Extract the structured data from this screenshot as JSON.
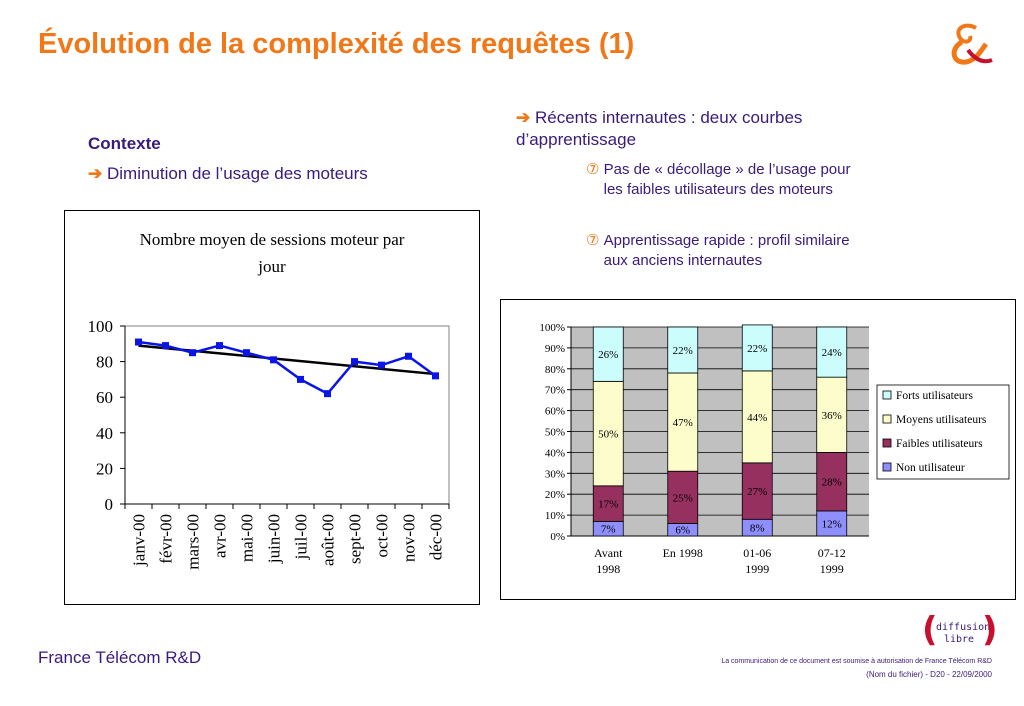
{
  "page": {
    "title": "Évolution de la complexité des requêtes (1)",
    "context_heading": "Contexte",
    "context_bullet": "Diminution de l’usage des moteurs",
    "recent_bullet": "Récents internautes  : deux courbes d’apprentissage",
    "sub_symbol": "⑦",
    "arrow": "➔",
    "sub_bullets": [
      "Pas de « décollage » de l’usage pour les faibles utilisateurs des moteurs",
      "Apprentissage rapide  : profil similaire aux anciens internautes"
    ],
    "footer_left": "France Télécom R&D",
    "footer_right_line1": "La communication de ce document est soumise à autorisation de France Télécom R&D",
    "footer_right_line2": "(Nom du fichier)  - D20 - 22/09/2000",
    "badge_line1": "diffusion",
    "badge_line2": "libre",
    "colors": {
      "title": "#f07818",
      "text": "#3a1a7a",
      "accent": "#f07818",
      "line_series": "#0a14e6",
      "trend": "#000000"
    }
  },
  "chart_data": [
    {
      "type": "line",
      "title": "Nombre moyen de sessions moteur par jour",
      "categories": [
        "janv-00",
        "févr-00",
        "mars-00",
        "avr-00",
        "mai-00",
        "juin-00",
        "juil-00",
        "août-00",
        "sept-00",
        "oct-00",
        "nov-00",
        "déc-00"
      ],
      "series": [
        {
          "values": [
            91,
            89,
            85,
            89,
            85,
            81,
            70,
            62,
            80,
            78,
            83,
            72
          ]
        }
      ],
      "trendline": {
        "start": 89,
        "end": 73
      },
      "ylim": [
        0,
        100
      ],
      "yticks": [
        0,
        20,
        40,
        60,
        80,
        100
      ],
      "grid": false,
      "legend": "none"
    },
    {
      "type": "bar",
      "stacked": true,
      "categories": [
        "Avant\n1998",
        "En 1998",
        "01-06\n1999",
        "07-12\n1999"
      ],
      "series": [
        {
          "name": "Non utilisateur",
          "values": [
            7,
            6,
            8,
            12
          ],
          "color": "#8e8efc"
        },
        {
          "name": "Faibles utilisateurs",
          "values": [
            17,
            25,
            27,
            28
          ],
          "color": "#96305e"
        },
        {
          "name": "Moyens utilisateurs",
          "values": [
            50,
            47,
            44,
            36
          ],
          "color": "#fdfdcb"
        },
        {
          "name": "Forts utilisateurs",
          "values": [
            26,
            22,
            22,
            24
          ],
          "color": "#ccfdfd"
        }
      ],
      "ylim": [
        0,
        100
      ],
      "yticks": [
        "0%",
        "10%",
        "20%",
        "30%",
        "40%",
        "50%",
        "60%",
        "70%",
        "80%",
        "90%",
        "100%"
      ],
      "plot_background": "#c0c0c0",
      "legend": "right"
    }
  ]
}
